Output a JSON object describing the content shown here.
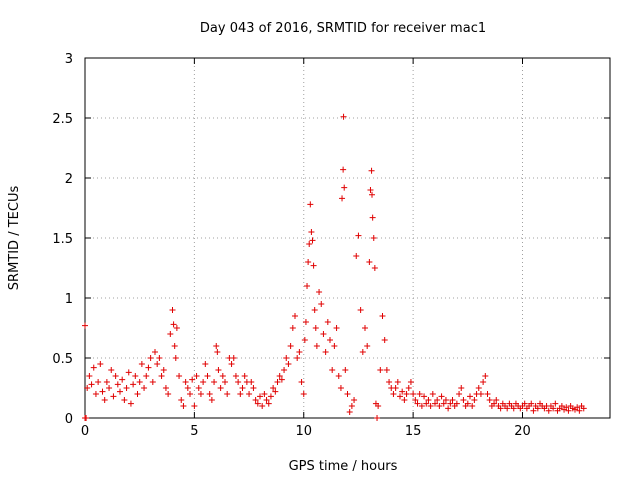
{
  "chart_data": {
    "type": "scatter",
    "title": "Day 043 of 2016, SRMTID for receiver mac1",
    "xlabel": "GPS time / hours",
    "ylabel": "SRMTID / TECUs",
    "xlim": [
      0,
      24
    ],
    "ylim": [
      0,
      3
    ],
    "xticks": [
      0,
      5,
      10,
      15,
      20
    ],
    "xtick_labels": [
      "0",
      "5",
      "10",
      "15",
      "20"
    ],
    "yticks": [
      0,
      0.5,
      1,
      1.5,
      2,
      2.5,
      3
    ],
    "ytick_labels": [
      "0",
      "0.5",
      "1",
      "1.5",
      "2",
      "2.5",
      "3"
    ],
    "grid": true,
    "marker": "+",
    "color": "#e00000",
    "series": [
      {
        "name": "SRMTID",
        "points": [
          [
            0.0,
            0.77
          ],
          [
            0.0,
            0.0
          ],
          [
            0.05,
            0.0
          ],
          [
            0.1,
            0.25
          ],
          [
            0.2,
            0.35
          ],
          [
            0.3,
            0.28
          ],
          [
            0.4,
            0.42
          ],
          [
            0.5,
            0.2
          ],
          [
            0.6,
            0.3
          ],
          [
            0.7,
            0.45
          ],
          [
            0.8,
            0.22
          ],
          [
            0.9,
            0.15
          ],
          [
            1.0,
            0.3
          ],
          [
            1.1,
            0.25
          ],
          [
            1.2,
            0.4
          ],
          [
            1.3,
            0.18
          ],
          [
            1.4,
            0.35
          ],
          [
            1.5,
            0.28
          ],
          [
            1.6,
            0.22
          ],
          [
            1.7,
            0.32
          ],
          [
            1.8,
            0.15
          ],
          [
            1.9,
            0.25
          ],
          [
            2.0,
            0.38
          ],
          [
            2.1,
            0.12
          ],
          [
            2.2,
            0.28
          ],
          [
            2.3,
            0.35
          ],
          [
            2.4,
            0.2
          ],
          [
            2.5,
            0.3
          ],
          [
            2.6,
            0.45
          ],
          [
            2.7,
            0.25
          ],
          [
            2.8,
            0.35
          ],
          [
            2.9,
            0.42
          ],
          [
            3.0,
            0.5
          ],
          [
            3.1,
            0.3
          ],
          [
            3.2,
            0.55
          ],
          [
            3.3,
            0.45
          ],
          [
            3.4,
            0.5
          ],
          [
            3.5,
            0.35
          ],
          [
            3.6,
            0.4
          ],
          [
            3.7,
            0.25
          ],
          [
            3.8,
            0.2
          ],
          [
            3.9,
            0.7
          ],
          [
            4.0,
            0.9
          ],
          [
            4.05,
            0.78
          ],
          [
            4.1,
            0.6
          ],
          [
            4.15,
            0.5
          ],
          [
            4.2,
            0.75
          ],
          [
            4.3,
            0.35
          ],
          [
            4.4,
            0.15
          ],
          [
            4.5,
            0.1
          ],
          [
            4.6,
            0.3
          ],
          [
            4.7,
            0.25
          ],
          [
            4.8,
            0.2
          ],
          [
            4.9,
            0.32
          ],
          [
            5.0,
            0.1
          ],
          [
            5.1,
            0.35
          ],
          [
            5.2,
            0.25
          ],
          [
            5.3,
            0.2
          ],
          [
            5.4,
            0.3
          ],
          [
            5.5,
            0.45
          ],
          [
            5.6,
            0.35
          ],
          [
            5.7,
            0.2
          ],
          [
            5.8,
            0.15
          ],
          [
            5.9,
            0.3
          ],
          [
            6.0,
            0.6
          ],
          [
            6.05,
            0.55
          ],
          [
            6.1,
            0.4
          ],
          [
            6.2,
            0.25
          ],
          [
            6.3,
            0.35
          ],
          [
            6.4,
            0.3
          ],
          [
            6.5,
            0.2
          ],
          [
            6.6,
            0.5
          ],
          [
            6.7,
            0.45
          ],
          [
            6.8,
            0.5
          ],
          [
            6.9,
            0.35
          ],
          [
            7.0,
            0.3
          ],
          [
            7.1,
            0.2
          ],
          [
            7.2,
            0.25
          ],
          [
            7.3,
            0.35
          ],
          [
            7.4,
            0.3
          ],
          [
            7.5,
            0.2
          ],
          [
            7.6,
            0.3
          ],
          [
            7.7,
            0.25
          ],
          [
            7.8,
            0.15
          ],
          [
            7.9,
            0.12
          ],
          [
            8.0,
            0.18
          ],
          [
            8.1,
            0.1
          ],
          [
            8.2,
            0.2
          ],
          [
            8.3,
            0.15
          ],
          [
            8.4,
            0.12
          ],
          [
            8.5,
            0.18
          ],
          [
            8.6,
            0.25
          ],
          [
            8.7,
            0.22
          ],
          [
            8.8,
            0.3
          ],
          [
            8.9,
            0.35
          ],
          [
            9.0,
            0.32
          ],
          [
            9.1,
            0.4
          ],
          [
            9.2,
            0.5
          ],
          [
            9.3,
            0.45
          ],
          [
            9.4,
            0.6
          ],
          [
            9.5,
            0.75
          ],
          [
            9.6,
            0.85
          ],
          [
            9.7,
            0.5
          ],
          [
            9.8,
            0.55
          ],
          [
            9.9,
            0.3
          ],
          [
            10.0,
            0.2
          ],
          [
            10.05,
            0.65
          ],
          [
            10.1,
            0.8
          ],
          [
            10.15,
            1.1
          ],
          [
            10.2,
            1.3
          ],
          [
            10.25,
            1.45
          ],
          [
            10.3,
            1.78
          ],
          [
            10.35,
            1.55
          ],
          [
            10.4,
            1.48
          ],
          [
            10.45,
            1.27
          ],
          [
            10.5,
            0.9
          ],
          [
            10.55,
            0.75
          ],
          [
            10.6,
            0.6
          ],
          [
            10.7,
            1.05
          ],
          [
            10.8,
            0.95
          ],
          [
            10.9,
            0.7
          ],
          [
            11.0,
            0.55
          ],
          [
            11.1,
            0.8
          ],
          [
            11.2,
            0.65
          ],
          [
            11.3,
            0.4
          ],
          [
            11.4,
            0.6
          ],
          [
            11.5,
            0.75
          ],
          [
            11.6,
            0.35
          ],
          [
            11.7,
            0.25
          ],
          [
            11.75,
            1.83
          ],
          [
            11.8,
            2.07
          ],
          [
            11.82,
            2.51
          ],
          [
            11.85,
            1.92
          ],
          [
            11.9,
            0.4
          ],
          [
            12.0,
            0.2
          ],
          [
            12.1,
            0.05
          ],
          [
            12.2,
            0.1
          ],
          [
            12.3,
            0.15
          ],
          [
            12.4,
            1.35
          ],
          [
            12.5,
            1.52
          ],
          [
            12.6,
            0.9
          ],
          [
            12.7,
            0.55
          ],
          [
            12.8,
            0.75
          ],
          [
            12.9,
            0.6
          ],
          [
            13.0,
            1.3
          ],
          [
            13.05,
            1.9
          ],
          [
            13.1,
            2.06
          ],
          [
            13.12,
            1.86
          ],
          [
            13.15,
            1.67
          ],
          [
            13.2,
            1.5
          ],
          [
            13.25,
            1.25
          ],
          [
            13.3,
            0.12
          ],
          [
            13.35,
            0.0
          ],
          [
            13.4,
            0.1
          ],
          [
            13.5,
            0.4
          ],
          [
            13.6,
            0.85
          ],
          [
            13.7,
            0.65
          ],
          [
            13.8,
            0.4
          ],
          [
            13.9,
            0.3
          ],
          [
            14.0,
            0.25
          ],
          [
            14.1,
            0.2
          ],
          [
            14.2,
            0.25
          ],
          [
            14.3,
            0.3
          ],
          [
            14.4,
            0.18
          ],
          [
            14.5,
            0.22
          ],
          [
            14.6,
            0.15
          ],
          [
            14.7,
            0.2
          ],
          [
            14.8,
            0.25
          ],
          [
            14.9,
            0.3
          ],
          [
            15.0,
            0.2
          ],
          [
            15.1,
            0.15
          ],
          [
            15.2,
            0.12
          ],
          [
            15.3,
            0.2
          ],
          [
            15.4,
            0.1
          ],
          [
            15.5,
            0.18
          ],
          [
            15.6,
            0.12
          ],
          [
            15.7,
            0.15
          ],
          [
            15.8,
            0.1
          ],
          [
            15.9,
            0.2
          ],
          [
            16.0,
            0.12
          ],
          [
            16.1,
            0.15
          ],
          [
            16.2,
            0.1
          ],
          [
            16.3,
            0.18
          ],
          [
            16.4,
            0.12
          ],
          [
            16.5,
            0.15
          ],
          [
            16.6,
            0.08
          ],
          [
            16.7,
            0.12
          ],
          [
            16.8,
            0.15
          ],
          [
            16.9,
            0.1
          ],
          [
            17.0,
            0.12
          ],
          [
            17.1,
            0.2
          ],
          [
            17.2,
            0.25
          ],
          [
            17.3,
            0.15
          ],
          [
            17.4,
            0.1
          ],
          [
            17.5,
            0.12
          ],
          [
            17.6,
            0.18
          ],
          [
            17.7,
            0.1
          ],
          [
            17.8,
            0.15
          ],
          [
            17.9,
            0.2
          ],
          [
            18.0,
            0.25
          ],
          [
            18.1,
            0.2
          ],
          [
            18.2,
            0.3
          ],
          [
            18.3,
            0.35
          ],
          [
            18.4,
            0.2
          ],
          [
            18.5,
            0.15
          ],
          [
            18.6,
            0.1
          ],
          [
            18.7,
            0.12
          ],
          [
            18.8,
            0.15
          ],
          [
            18.9,
            0.1
          ],
          [
            19.0,
            0.08
          ],
          [
            19.1,
            0.12
          ],
          [
            19.2,
            0.1
          ],
          [
            19.3,
            0.08
          ],
          [
            19.4,
            0.12
          ],
          [
            19.5,
            0.1
          ],
          [
            19.6,
            0.08
          ],
          [
            19.7,
            0.12
          ],
          [
            19.8,
            0.1
          ],
          [
            19.9,
            0.08
          ],
          [
            20.0,
            0.1
          ],
          [
            20.1,
            0.12
          ],
          [
            20.2,
            0.08
          ],
          [
            20.3,
            0.1
          ],
          [
            20.4,
            0.12
          ],
          [
            20.5,
            0.06
          ],
          [
            20.6,
            0.1
          ],
          [
            20.7,
            0.08
          ],
          [
            20.8,
            0.12
          ],
          [
            20.9,
            0.1
          ],
          [
            21.0,
            0.08
          ],
          [
            21.1,
            0.1
          ],
          [
            21.2,
            0.06
          ],
          [
            21.3,
            0.1
          ],
          [
            21.4,
            0.08
          ],
          [
            21.5,
            0.12
          ],
          [
            21.6,
            0.06
          ],
          [
            21.7,
            0.08
          ],
          [
            21.8,
            0.1
          ],
          [
            21.9,
            0.07
          ],
          [
            22.0,
            0.09
          ],
          [
            22.1,
            0.06
          ],
          [
            22.2,
            0.1
          ],
          [
            22.3,
            0.08
          ],
          [
            22.4,
            0.07
          ],
          [
            22.5,
            0.09
          ],
          [
            22.6,
            0.06
          ],
          [
            22.7,
            0.1
          ],
          [
            22.8,
            0.08
          ]
        ]
      }
    ]
  }
}
